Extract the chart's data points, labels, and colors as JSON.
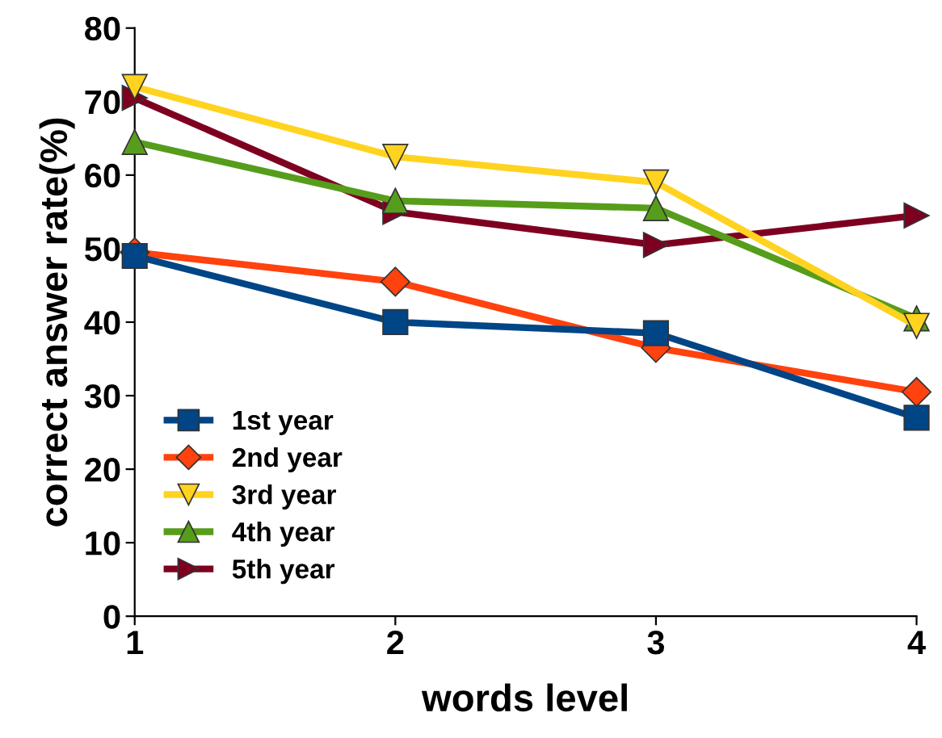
{
  "chart_data": {
    "type": "line",
    "xlabel": "words level",
    "ylabel": "correct answer rate(%)",
    "x": [
      1,
      2,
      3,
      4
    ],
    "xlim": [
      1,
      4
    ],
    "xticks": [
      1,
      2,
      3,
      4
    ],
    "ylim": [
      0,
      80
    ],
    "yticks": [
      0,
      10,
      20,
      30,
      40,
      50,
      60,
      70,
      80
    ],
    "grid": false,
    "legend": "bottom left",
    "series": [
      {
        "name": "1st year",
        "color": "#004586",
        "marker": "square",
        "values": [
          49,
          40,
          38.5,
          27
        ]
      },
      {
        "name": "2nd year",
        "color": "#ff420e",
        "marker": "diamond",
        "values": [
          49.5,
          45.5,
          36.5,
          30.5
        ]
      },
      {
        "name": "3rd year",
        "color": "#ffd320",
        "marker": "triangle_down",
        "values": [
          72,
          62.5,
          59,
          39.5
        ]
      },
      {
        "name": "4th year",
        "color": "#579d1c",
        "marker": "triangle",
        "values": [
          64.5,
          56.5,
          55.5,
          40.5
        ]
      },
      {
        "name": "5th year",
        "color": "#7e0021",
        "marker": "triangle_right",
        "values": [
          70.5,
          55,
          50.5,
          54.5
        ]
      }
    ]
  }
}
